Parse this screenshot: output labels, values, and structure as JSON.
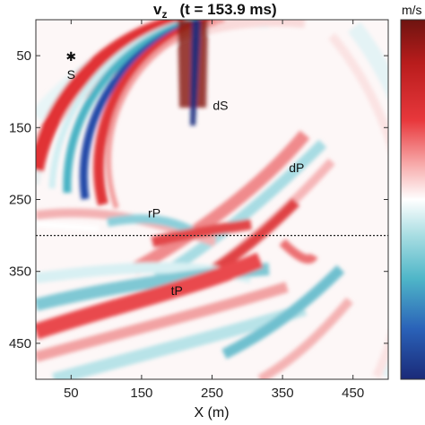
{
  "chart_data": {
    "type": "heatmap",
    "title_main": "v",
    "title_sub": "z",
    "title_time": "(t = 153.9 ms)",
    "xlabel": "X (m)",
    "ylabel": "",
    "colorbar_label": "m/s",
    "xlim": [
      0,
      500
    ],
    "ylim": [
      0,
      500
    ],
    "y_reversed": true,
    "x_ticks": [
      50,
      150,
      250,
      350,
      450
    ],
    "y_ticks": [
      50,
      150,
      250,
      350,
      450
    ],
    "grid": false,
    "source": {
      "marker": "✱",
      "label": "S",
      "x": 50,
      "y": 50
    },
    "horizontal_line_y": 300,
    "annotations": [
      {
        "text": "dS",
        "x": 262,
        "y": 125
      },
      {
        "text": "dP",
        "x": 370,
        "y": 212
      },
      {
        "text": "rP",
        "x": 168,
        "y": 275
      },
      {
        "text": "tP",
        "x": 200,
        "y": 383
      }
    ]
  }
}
